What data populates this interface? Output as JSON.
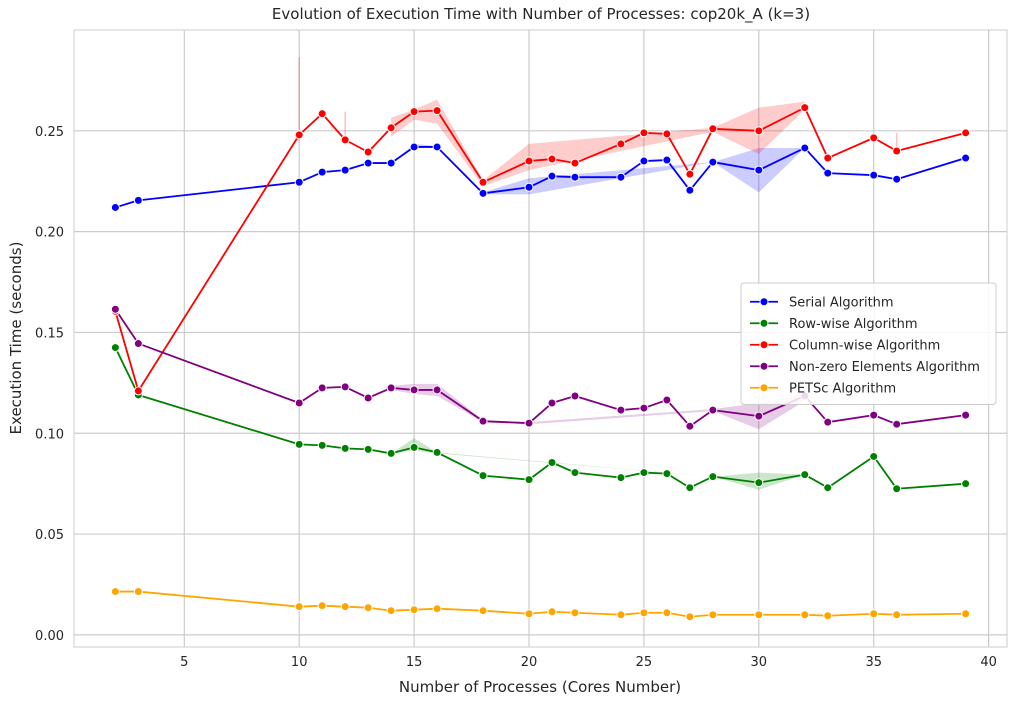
{
  "chart_data": {
    "type": "line",
    "title": "Evolution of Execution Time with Number of Processes: cop20k_A (k=3)",
    "xlabel": "Number of Processes (Cores Number)",
    "ylabel": "Execution Time (seconds)",
    "xlim": [
      0.2,
      40.8
    ],
    "ylim": [
      -0.006,
      0.3
    ],
    "xticks": [
      5,
      10,
      15,
      20,
      25,
      30,
      35,
      40
    ],
    "xtick_labels": [
      "5",
      "10",
      "15",
      "20",
      "25",
      "30",
      "35",
      "40"
    ],
    "yticks": [
      0.0,
      0.05,
      0.1,
      0.15,
      0.2,
      0.25
    ],
    "ytick_labels": [
      "0.00",
      "0.05",
      "0.10",
      "0.15",
      "0.20",
      "0.25"
    ],
    "grid": true,
    "legend_position": "center-right",
    "x": [
      2,
      3,
      10,
      11,
      12,
      13,
      14,
      15,
      16,
      18,
      20,
      21,
      22,
      24,
      25,
      26,
      27,
      28,
      30,
      32,
      33,
      35,
      36,
      39
    ],
    "series": [
      {
        "name": "Serial Algorithm",
        "color": "#0000ff",
        "values": [
          0.212,
          0.2155,
          0.2245,
          0.2295,
          0.2305,
          0.234,
          0.234,
          0.242,
          0.242,
          0.219,
          0.222,
          0.2275,
          0.227,
          0.227,
          0.235,
          0.2355,
          0.2205,
          0.2345,
          0.2305,
          0.2415,
          0.229,
          0.228,
          0.226,
          0.2365
        ],
        "ci_x": [
          14,
          15,
          16,
          18,
          20,
          28,
          30,
          32
        ],
        "ci_low": [
          0.234,
          0.2415,
          0.2415,
          0.2185,
          0.2185,
          0.2345,
          0.2195,
          0.2415
        ],
        "ci_high": [
          0.234,
          0.2435,
          0.2425,
          0.2195,
          0.2265,
          0.2345,
          0.2415,
          0.2415
        ]
      },
      {
        "name": "Row-wise Algorithm",
        "color": "#008000",
        "values": [
          0.1425,
          0.119,
          0.0945,
          0.094,
          0.0925,
          0.092,
          0.09,
          0.093,
          0.0905,
          0.079,
          0.077,
          0.0855,
          0.0805,
          0.078,
          0.0805,
          0.08,
          0.073,
          0.0785,
          0.0755,
          0.0795,
          0.073,
          0.0885,
          0.0725,
          0.075
        ],
        "ci_x": [
          14,
          15,
          16,
          28,
          30,
          32
        ],
        "ci_low": [
          0.09,
          0.0915,
          0.09,
          0.0785,
          0.072,
          0.0795
        ],
        "ci_high": [
          0.09,
          0.0975,
          0.0905,
          0.0785,
          0.0805,
          0.0795
        ]
      },
      {
        "name": "Column-wise Algorithm",
        "color": "#ff0000",
        "values": [
          0.1605,
          0.121,
          0.248,
          0.2585,
          0.2455,
          0.2395,
          0.2515,
          0.2595,
          0.26,
          0.2245,
          0.235,
          0.236,
          0.234,
          0.2435,
          0.249,
          0.2485,
          0.2285,
          0.251,
          0.25,
          0.2615,
          0.2365,
          0.2465,
          0.24,
          0.249
        ],
        "ci_x": [
          14,
          15,
          16,
          18,
          20,
          28,
          30,
          32
        ],
        "ci_low": [
          0.247,
          0.2555,
          0.2535,
          0.2225,
          0.2305,
          0.2495,
          0.2385,
          0.2605
        ],
        "ci_high": [
          0.2565,
          0.2605,
          0.2655,
          0.2255,
          0.2435,
          0.2515,
          0.2615,
          0.2645
        ],
        "spikes": [
          {
            "x": 10,
            "low": 0.245,
            "high": 0.2865
          },
          {
            "x": 12,
            "low": 0.244,
            "high": 0.2595
          },
          {
            "x": 36,
            "low": 0.238,
            "high": 0.249
          }
        ]
      },
      {
        "name": "Non-zero Elements Algorithm",
        "color": "#800080",
        "values": [
          0.1615,
          0.1445,
          0.115,
          0.1225,
          0.123,
          0.1175,
          0.1225,
          0.1215,
          0.1215,
          0.106,
          0.105,
          0.115,
          0.1185,
          0.1115,
          0.1125,
          0.1165,
          0.1035,
          0.1115,
          0.1085,
          0.1185,
          0.1055,
          0.109,
          0.1045,
          0.109
        ],
        "ci_x": [
          14,
          15,
          16,
          18,
          20,
          28,
          30,
          32
        ],
        "ci_low": [
          0.1215,
          0.1195,
          0.1185,
          0.1055,
          0.1045,
          0.111,
          0.102,
          0.116
        ],
        "ci_high": [
          0.1235,
          0.1245,
          0.1245,
          0.1065,
          0.1055,
          0.112,
          0.115,
          0.12
        ]
      },
      {
        "name": "PETSc Algorithm",
        "color": "#ffa500",
        "values": [
          0.0215,
          0.0215,
          0.014,
          0.0145,
          0.014,
          0.0135,
          0.012,
          0.0125,
          0.013,
          0.012,
          0.0105,
          0.0115,
          0.011,
          0.01,
          0.011,
          0.011,
          0.009,
          0.01,
          0.01,
          0.01,
          0.0095,
          0.0105,
          0.01,
          0.0105
        ]
      }
    ]
  }
}
